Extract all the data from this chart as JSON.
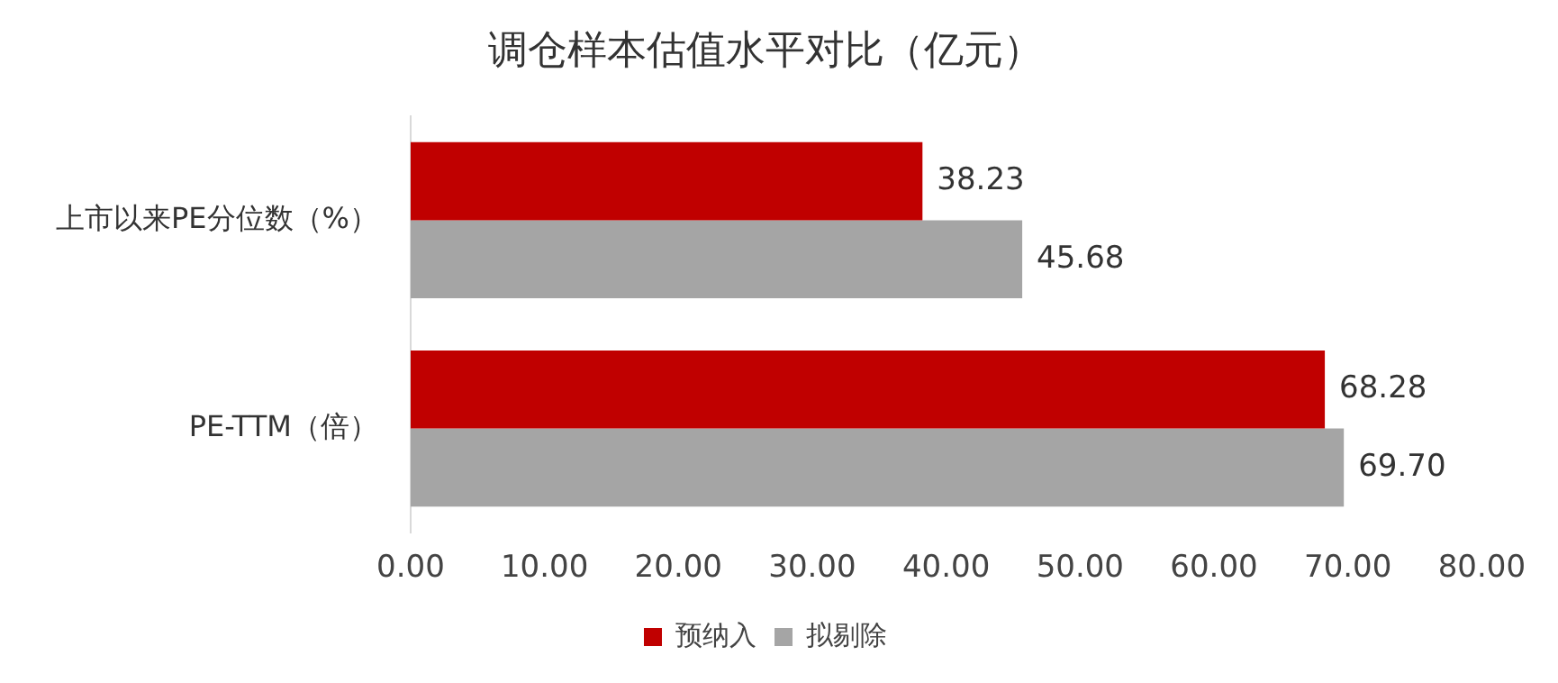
{
  "chart_data": {
    "type": "bar",
    "orientation": "horizontal",
    "title": "调仓样本估值水平对比（亿元）",
    "categories": [
      "上市以来PE分位数（%）",
      "PE-TTM（倍）"
    ],
    "series": [
      {
        "name": "预纳入",
        "color": "#c00000",
        "values": [
          38.23,
          68.28
        ],
        "value_labels": [
          "38.23",
          "68.28"
        ]
      },
      {
        "name": "拟剔除",
        "color": "#a5a5a5",
        "values": [
          45.68,
          69.7
        ],
        "value_labels": [
          "45.68",
          "69.70"
        ]
      }
    ],
    "xlim": [
      0,
      80
    ],
    "xticks": [
      {
        "value": 0,
        "label": "0.00"
      },
      {
        "value": 10,
        "label": "10.00"
      },
      {
        "value": 20,
        "label": "20.00"
      },
      {
        "value": 30,
        "label": "30.00"
      },
      {
        "value": 40,
        "label": "40.00"
      },
      {
        "value": 50,
        "label": "50.00"
      },
      {
        "value": 60,
        "label": "60.00"
      },
      {
        "value": 70,
        "label": "70.00"
      },
      {
        "value": 80,
        "label": "80.00"
      }
    ],
    "grid": false,
    "legend": "bottom"
  }
}
